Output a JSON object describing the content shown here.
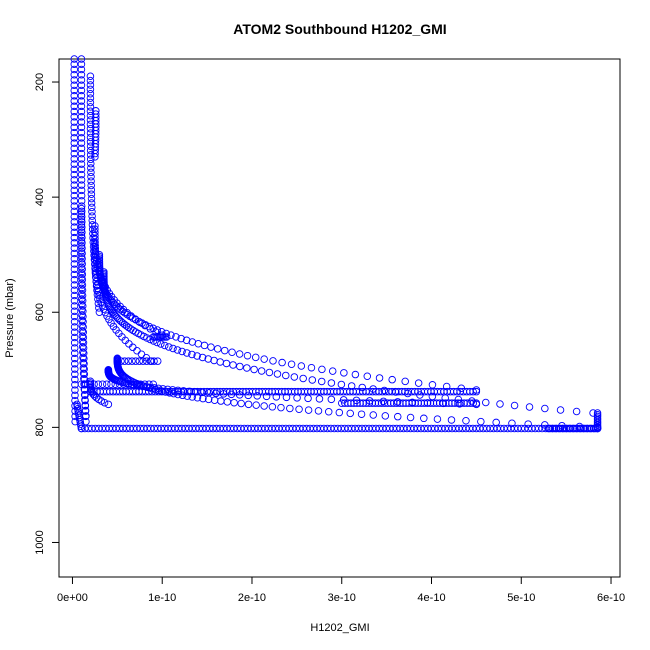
{
  "chart_data": {
    "type": "scatter",
    "title": "ATOM2 Southbound H1202_GMI",
    "xlabel": "H1202_GMI",
    "ylabel": "Pressure (mbar)",
    "xlim": [
      -1.5e-11,
      6.1e-10
    ],
    "ylim": [
      1060,
      160
    ],
    "y_reversed": true,
    "marker": "open-circle",
    "marker_color": "#0000ff",
    "x_ticks": [
      0,
      1e-10,
      2e-10,
      3e-10,
      4e-10,
      5e-10,
      6e-10
    ],
    "x_tick_labels": [
      "0e+00",
      "1e-10",
      "2e-10",
      "3e-10",
      "4e-10",
      "5e-10",
      "6e-10"
    ],
    "y_ticks": [
      200,
      400,
      600,
      800,
      1000
    ],
    "y_tick_labels": [
      "200",
      "400",
      "600",
      "800",
      "1000"
    ],
    "grid": false,
    "series": [
      {
        "segments": [
          {
            "kind": "curve",
            "from": [
              2e-12,
              160
            ],
            "to": [
              3e-12,
              790
            ],
            "n": 70
          },
          {
            "kind": "curve",
            "from": [
              1e-11,
              160
            ],
            "to": [
              1.5e-11,
              790
            ],
            "n": 70
          },
          {
            "kind": "curve",
            "from": [
              2e-11,
              190
            ],
            "to": [
              3e-11,
              600
            ],
            "n": 55
          },
          {
            "kind": "curve",
            "from": [
              2.6e-11,
              250
            ],
            "to": [
              2.5e-11,
              330
            ],
            "n": 15
          },
          {
            "kind": "curve",
            "from": [
              1e-11,
              420
            ],
            "to": [
              1.5e-11,
              780
            ],
            "n": 40
          },
          {
            "kind": "curve",
            "from": [
              2.5e-11,
              450
            ],
            "to": [
              1e-10,
              640
            ],
            "n": 35
          },
          {
            "kind": "curve",
            "from": [
              2.5e-11,
              480
            ],
            "to": [
              8.8e-11,
              685
            ],
            "n": 35
          },
          {
            "kind": "curve",
            "from": [
              3e-11,
              500
            ],
            "to": [
              4.5e-10,
              735
            ],
            "n": 80
          },
          {
            "kind": "curve",
            "from": [
              3.5e-11,
              530
            ],
            "to": [
              5.8e-10,
              775
            ],
            "n": 95
          },
          {
            "kind": "curve",
            "from": [
              5e-11,
              680
            ],
            "to": [
              5.85e-10,
              800
            ],
            "n": 85
          },
          {
            "kind": "curve",
            "from": [
              4e-11,
              700
            ],
            "to": [
              4.5e-10,
              760
            ],
            "n": 70
          },
          {
            "kind": "curve",
            "from": [
              2e-11,
              720
            ],
            "to": [
              4e-11,
              760
            ],
            "n": 15
          },
          {
            "kind": "line",
            "from": [
              1e-11,
              802
            ],
            "to": [
              5.85e-10,
              802
            ],
            "n": 150
          },
          {
            "kind": "line",
            "from": [
              2e-11,
              738
            ],
            "to": [
              4.5e-10,
              738
            ],
            "n": 120
          },
          {
            "kind": "line",
            "from": [
              3e-10,
              758
            ],
            "to": [
              4.5e-10,
              758
            ],
            "n": 45
          },
          {
            "kind": "line",
            "from": [
              5.3e-10,
              802
            ],
            "to": [
              5.85e-10,
              802
            ],
            "n": 25
          },
          {
            "kind": "line",
            "from": [
              9e-11,
              643
            ],
            "to": [
              1.05e-10,
              643
            ],
            "n": 10
          },
          {
            "kind": "line",
            "from": [
              5e-11,
              685
            ],
            "to": [
              9.5e-11,
              685
            ],
            "n": 12
          },
          {
            "kind": "line",
            "from": [
              5.85e-10,
              775
            ],
            "to": [
              5.85e-10,
              802
            ],
            "n": 10
          },
          {
            "kind": "line",
            "from": [
              5e-12,
              760
            ],
            "to": [
              1e-11,
              802
            ],
            "n": 12
          },
          {
            "kind": "line",
            "from": [
              1e-11,
              725
            ],
            "to": [
              9e-11,
              725
            ],
            "n": 18
          }
        ]
      }
    ]
  }
}
